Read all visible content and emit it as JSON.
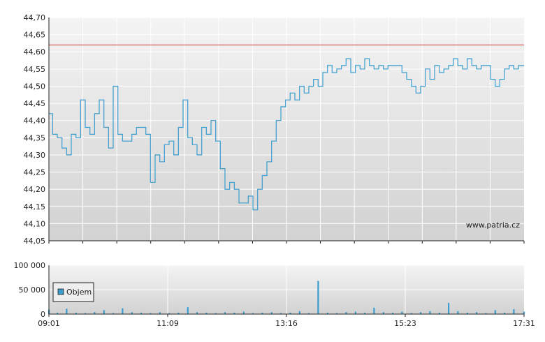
{
  "watermark": "www.patria.cz",
  "colors": {
    "price_line": "#3a9ccf",
    "reference_line": "#d03030",
    "volume_bar": "#3a9ccf",
    "grid": "#ffffff",
    "axis": "#222222",
    "plot_top": "#f4f4f4",
    "plot_bottom": "#d2d2d2"
  },
  "chart_data": [
    {
      "type": "line",
      "name": "price",
      "ylim": [
        44.05,
        44.7
      ],
      "yticks": [
        "44,70",
        "44,65",
        "44,60",
        "44,55",
        "44,50",
        "44,45",
        "44,40",
        "44,35",
        "44,30",
        "44,25",
        "44,20",
        "44,15",
        "44,10",
        "44,05"
      ],
      "ytick_values": [
        44.7,
        44.65,
        44.6,
        44.55,
        44.5,
        44.45,
        44.4,
        44.35,
        44.3,
        44.25,
        44.2,
        44.15,
        44.1,
        44.05
      ],
      "x_range": [
        "09:01",
        "17:31"
      ],
      "reference_value": 44.62,
      "x": [
        "09:01",
        "09:05",
        "09:10",
        "09:15",
        "09:20",
        "09:25",
        "09:30",
        "09:35",
        "09:40",
        "09:45",
        "09:50",
        "09:55",
        "10:00",
        "10:05",
        "10:10",
        "10:15",
        "10:20",
        "10:25",
        "10:30",
        "10:35",
        "10:40",
        "10:45",
        "10:50",
        "10:55",
        "11:00",
        "11:05",
        "11:10",
        "11:15",
        "11:20",
        "11:25",
        "11:30",
        "11:35",
        "11:40",
        "11:45",
        "11:50",
        "11:55",
        "12:00",
        "12:05",
        "12:10",
        "12:15",
        "12:20",
        "12:25",
        "12:30",
        "12:35",
        "12:40",
        "12:45",
        "12:50",
        "12:55",
        "13:00",
        "13:05",
        "13:10",
        "13:15",
        "13:20",
        "13:25",
        "13:30",
        "13:35",
        "13:40",
        "13:45",
        "13:50",
        "13:55",
        "14:00",
        "14:05",
        "14:10",
        "14:15",
        "14:20",
        "14:25",
        "14:30",
        "14:35",
        "14:40",
        "14:45",
        "14:50",
        "14:55",
        "15:00",
        "15:05",
        "15:10",
        "15:15",
        "15:20",
        "15:25",
        "15:30",
        "15:35",
        "15:40",
        "15:45",
        "15:50",
        "15:55",
        "16:00",
        "16:05",
        "16:10",
        "16:15",
        "16:20",
        "16:25",
        "16:30",
        "16:35",
        "16:40",
        "16:45",
        "16:50",
        "16:55",
        "17:00",
        "17:05",
        "17:10",
        "17:15",
        "17:20",
        "17:25",
        "17:31"
      ],
      "values": [
        44.42,
        44.36,
        44.35,
        44.32,
        44.3,
        44.36,
        44.35,
        44.46,
        44.38,
        44.36,
        44.42,
        44.46,
        44.38,
        44.32,
        44.5,
        44.36,
        44.34,
        44.34,
        44.36,
        44.38,
        44.38,
        44.36,
        44.22,
        44.3,
        44.28,
        44.33,
        44.34,
        44.3,
        44.38,
        44.46,
        44.35,
        44.33,
        44.3,
        44.38,
        44.36,
        44.4,
        44.34,
        44.26,
        44.2,
        44.22,
        44.2,
        44.16,
        44.16,
        44.18,
        44.14,
        44.2,
        44.24,
        44.28,
        44.34,
        44.4,
        44.44,
        44.46,
        44.48,
        44.46,
        44.5,
        44.48,
        44.5,
        44.52,
        44.5,
        44.54,
        44.56,
        44.54,
        44.55,
        44.56,
        44.58,
        44.54,
        44.56,
        44.55,
        44.58,
        44.56,
        44.55,
        44.56,
        44.55,
        44.56,
        44.56,
        44.56,
        44.54,
        44.52,
        44.5,
        44.48,
        44.5,
        44.55,
        44.52,
        44.56,
        44.54,
        44.55,
        44.56,
        44.58,
        44.56,
        44.55,
        44.58,
        44.56,
        44.55,
        44.56,
        44.56,
        44.52,
        44.5,
        44.52,
        44.55,
        44.56,
        44.55,
        44.56,
        44.56
      ]
    },
    {
      "type": "bar",
      "name": "volume",
      "legend": "Objem",
      "ylim": [
        0,
        100000
      ],
      "yticks": [
        "100 000",
        "50 000",
        "0"
      ],
      "ytick_values": [
        100000,
        50000,
        0
      ],
      "xticks": [
        "09:01",
        "11:09",
        "13:16",
        "15:23",
        "17:31"
      ],
      "x": [
        "09:01",
        "09:10",
        "09:20",
        "09:30",
        "09:40",
        "09:50",
        "10:00",
        "10:10",
        "10:20",
        "10:30",
        "10:40",
        "10:50",
        "11:00",
        "11:10",
        "11:20",
        "11:30",
        "11:40",
        "11:50",
        "12:00",
        "12:10",
        "12:20",
        "12:30",
        "12:40",
        "12:50",
        "13:00",
        "13:10",
        "13:20",
        "13:30",
        "13:40",
        "13:50",
        "14:00",
        "14:10",
        "14:20",
        "14:30",
        "14:40",
        "14:50",
        "15:00",
        "15:10",
        "15:20",
        "15:30",
        "15:40",
        "15:50",
        "16:00",
        "16:10",
        "16:20",
        "16:30",
        "16:40",
        "16:50",
        "17:00",
        "17:10",
        "17:20",
        "17:31"
      ],
      "values": [
        9000,
        3000,
        11000,
        3000,
        2000,
        4000,
        8000,
        2000,
        12000,
        4000,
        3000,
        2000,
        4000,
        2000,
        3000,
        14000,
        4000,
        3000,
        2000,
        4000,
        3000,
        5000,
        2000,
        3000,
        4000,
        2000,
        3000,
        6000,
        2000,
        68000,
        3000,
        2000,
        4000,
        5000,
        3000,
        13000,
        4000,
        3000,
        5000,
        2000,
        4000,
        6000,
        3000,
        23000,
        6000,
        3000,
        4000,
        2000,
        8000,
        3000,
        10000,
        5000
      ]
    }
  ]
}
